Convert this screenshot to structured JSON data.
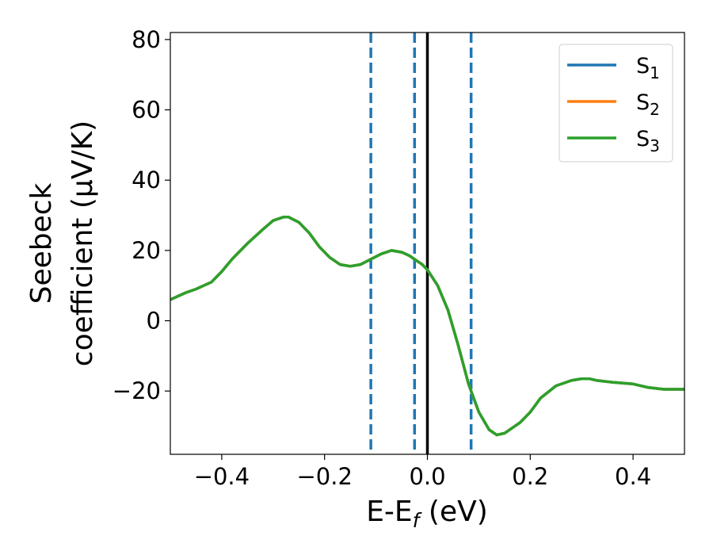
{
  "chart_data": {
    "type": "line",
    "xlabel_base": "E-E",
    "xlabel_sub": "f",
    "xlabel_unit": " (eV)",
    "ylabel_line1": "Seebeck",
    "ylabel_line2": "coefficient  (μV/K)",
    "xlim": [
      -0.5,
      0.5
    ],
    "ylim": [
      -38,
      82
    ],
    "xticks": [
      -0.4,
      -0.2,
      0.0,
      0.2,
      0.4
    ],
    "xtick_labels": [
      "−0.4",
      "−0.2",
      "0.0",
      "0.2",
      "0.4"
    ],
    "yticks": [
      -20,
      0,
      20,
      40,
      60,
      80
    ],
    "ytick_labels": [
      "−20",
      "0",
      "20",
      "40",
      "60",
      "80"
    ],
    "grid": false,
    "legend_position": "top-right",
    "series": [
      {
        "name": "S",
        "sub": "1",
        "color": "#1f77b4",
        "x": [
          -0.5,
          -0.47,
          -0.45,
          -0.42,
          -0.4,
          -0.38,
          -0.35,
          -0.32,
          -0.3,
          -0.28,
          -0.27,
          -0.25,
          -0.23,
          -0.21,
          -0.19,
          -0.17,
          -0.15,
          -0.13,
          -0.11,
          -0.09,
          -0.07,
          -0.05,
          -0.035,
          -0.02,
          -0.01,
          0.0,
          0.02,
          0.04,
          0.06,
          0.08,
          0.1,
          0.12,
          0.135,
          0.15,
          0.18,
          0.2,
          0.22,
          0.25,
          0.28,
          0.3,
          0.315,
          0.33,
          0.36,
          0.4,
          0.43,
          0.46,
          0.5
        ],
        "y": [
          6,
          8,
          9,
          11,
          14,
          17.5,
          22,
          26,
          28.5,
          29.5,
          29.5,
          28,
          25,
          21,
          18,
          16,
          15.5,
          16,
          17.5,
          19,
          20,
          19.5,
          18.5,
          17,
          16,
          14.5,
          10,
          3,
          -7,
          -18,
          -26,
          -31,
          -32.5,
          -32,
          -29,
          -26,
          -22,
          -18.5,
          -17,
          -16.5,
          -16.5,
          -17,
          -17.5,
          -18,
          -19,
          -19.5,
          -19.5
        ]
      },
      {
        "name": "S",
        "sub": "2",
        "color": "#ff7f0e",
        "x": [
          -0.5,
          -0.47,
          -0.45,
          -0.42,
          -0.4,
          -0.38,
          -0.35,
          -0.32,
          -0.3,
          -0.28,
          -0.27,
          -0.25,
          -0.23,
          -0.21,
          -0.19,
          -0.17,
          -0.15,
          -0.13,
          -0.11,
          -0.09,
          -0.07,
          -0.05,
          -0.035,
          -0.02,
          -0.01,
          0.0,
          0.02,
          0.04,
          0.06,
          0.08,
          0.1,
          0.12,
          0.135,
          0.15,
          0.18,
          0.2,
          0.22,
          0.25,
          0.28,
          0.3,
          0.315,
          0.33,
          0.36,
          0.4,
          0.43,
          0.46,
          0.5
        ],
        "y": [
          6,
          8,
          9,
          11,
          14,
          17.5,
          22,
          26,
          28.5,
          29.5,
          29.5,
          28,
          25,
          21,
          18,
          16,
          15.5,
          16,
          17.5,
          19,
          20,
          19.5,
          18.5,
          17,
          16,
          14.5,
          10,
          3,
          -7,
          -18,
          -26,
          -31,
          -32.5,
          -32,
          -29,
          -26,
          -22,
          -18.5,
          -17,
          -16.5,
          -16.5,
          -17,
          -17.5,
          -18,
          -19,
          -19.5,
          -19.5
        ]
      },
      {
        "name": "S",
        "sub": "3",
        "color": "#2ca02c",
        "x": [
          -0.5,
          -0.47,
          -0.45,
          -0.42,
          -0.4,
          -0.38,
          -0.35,
          -0.32,
          -0.3,
          -0.28,
          -0.27,
          -0.25,
          -0.23,
          -0.21,
          -0.19,
          -0.17,
          -0.15,
          -0.13,
          -0.11,
          -0.09,
          -0.07,
          -0.05,
          -0.035,
          -0.02,
          -0.01,
          0.0,
          0.02,
          0.04,
          0.06,
          0.08,
          0.1,
          0.12,
          0.135,
          0.15,
          0.18,
          0.2,
          0.22,
          0.25,
          0.28,
          0.3,
          0.315,
          0.33,
          0.36,
          0.4,
          0.43,
          0.46,
          0.5
        ],
        "y": [
          6,
          8,
          9,
          11,
          14,
          17.5,
          22,
          26,
          28.5,
          29.5,
          29.5,
          28,
          25,
          21,
          18,
          16,
          15.5,
          16,
          17.5,
          19,
          20,
          19.5,
          18.5,
          17,
          16,
          14.5,
          10,
          3,
          -7,
          -18,
          -26,
          -31,
          -32.5,
          -32,
          -29,
          -26,
          -22,
          -18.5,
          -17,
          -16.5,
          -16.5,
          -17,
          -17.5,
          -18,
          -19,
          -19.5,
          -19.5
        ]
      }
    ],
    "vlines": [
      {
        "x": -0.11,
        "style": "dashed",
        "color": "#1f77b4"
      },
      {
        "x": -0.025,
        "style": "dashed",
        "color": "#1f77b4"
      },
      {
        "x": 0.0,
        "style": "solid",
        "color": "#000000"
      },
      {
        "x": 0.085,
        "style": "dashed",
        "color": "#1f77b4"
      }
    ]
  }
}
